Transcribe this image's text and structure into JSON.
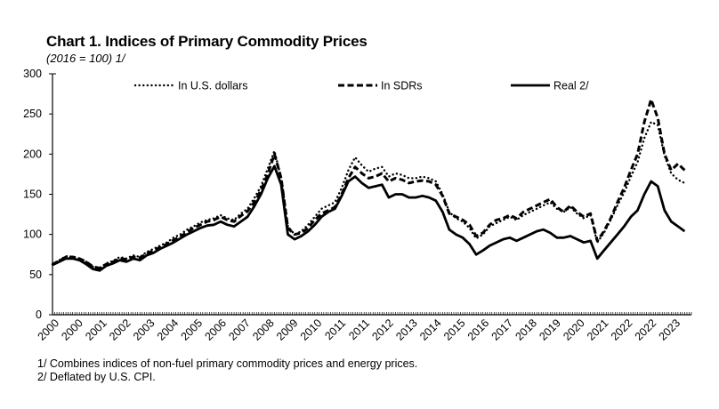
{
  "chart_data": {
    "type": "line",
    "title": "Chart 1. Indices of Primary Commodity Prices",
    "subtitle": "(2016 = 100) 1/",
    "xlabel": "",
    "ylabel": "",
    "ylim": [
      0,
      300
    ],
    "yticks": [
      0,
      50,
      100,
      150,
      200,
      250,
      300
    ],
    "xlim": [
      2000.0,
      2023.75
    ],
    "xtick_labels": [
      "2000",
      "2000",
      "2001",
      "2002",
      "2003",
      "2004",
      "2005",
      "2006",
      "2007",
      "2008",
      "2009",
      "2010",
      "2011",
      "2011",
      "2012",
      "2013",
      "2014",
      "2015",
      "2016",
      "2017",
      "2018",
      "2019",
      "2020",
      "2021",
      "2022",
      "2022",
      "2023"
    ],
    "grid": false,
    "legend_position": "top",
    "x": [
      2000.0,
      2000.25,
      2000.5,
      2000.75,
      2001.0,
      2001.25,
      2001.5,
      2001.75,
      2002.0,
      2002.25,
      2002.5,
      2002.75,
      2003.0,
      2003.25,
      2003.5,
      2003.75,
      2004.0,
      2004.25,
      2004.5,
      2004.75,
      2005.0,
      2005.25,
      2005.5,
      2005.75,
      2006.0,
      2006.25,
      2006.5,
      2006.75,
      2007.0,
      2007.25,
      2007.5,
      2007.75,
      2008.0,
      2008.25,
      2008.5,
      2008.75,
      2009.0,
      2009.25,
      2009.5,
      2009.75,
      2010.0,
      2010.25,
      2010.5,
      2010.75,
      2011.0,
      2011.25,
      2011.5,
      2011.75,
      2012.0,
      2012.25,
      2012.5,
      2012.75,
      2013.0,
      2013.25,
      2013.5,
      2013.75,
      2014.0,
      2014.25,
      2014.5,
      2014.75,
      2015.0,
      2015.25,
      2015.5,
      2015.75,
      2016.0,
      2016.25,
      2016.5,
      2016.75,
      2017.0,
      2017.25,
      2017.5,
      2017.75,
      2018.0,
      2018.25,
      2018.5,
      2018.75,
      2019.0,
      2019.25,
      2019.5,
      2019.75,
      2020.0,
      2020.25,
      2020.5,
      2020.75,
      2021.0,
      2021.25,
      2021.5,
      2021.75,
      2022.0,
      2022.25,
      2022.5,
      2022.75,
      2023.0,
      2023.25,
      2023.5
    ],
    "series": [
      {
        "name": "In U.S. dollars",
        "style": "dotted",
        "values": [
          63,
          68,
          73,
          72,
          70,
          66,
          60,
          58,
          64,
          67,
          72,
          70,
          74,
          72,
          78,
          82,
          86,
          90,
          96,
          100,
          106,
          110,
          115,
          118,
          120,
          124,
          120,
          118,
          126,
          132,
          145,
          160,
          182,
          204,
          170,
          110,
          100,
          104,
          112,
          122,
          132,
          136,
          140,
          158,
          180,
          196,
          186,
          178,
          182,
          184,
          172,
          176,
          174,
          170,
          170,
          172,
          170,
          166,
          150,
          128,
          120,
          116,
          108,
          95,
          100,
          110,
          114,
          118,
          122,
          118,
          124,
          128,
          132,
          136,
          140,
          132,
          128,
          134,
          126,
          120,
          124,
          90,
          102,
          118,
          136,
          152,
          172,
          190,
          220,
          240,
          236,
          198,
          176,
          168,
          164
        ]
      },
      {
        "name": "In SDRs",
        "style": "dashed",
        "values": [
          63,
          67,
          72,
          72,
          70,
          66,
          60,
          58,
          63,
          66,
          70,
          69,
          72,
          71,
          76,
          80,
          84,
          88,
          93,
          97,
          103,
          108,
          112,
          116,
          118,
          122,
          118,
          116,
          123,
          129,
          140,
          155,
          175,
          200,
          170,
          108,
          100,
          102,
          108,
          118,
          126,
          130,
          134,
          150,
          170,
          184,
          176,
          170,
          172,
          176,
          166,
          170,
          168,
          164,
          166,
          167,
          166,
          162,
          148,
          126,
          122,
          118,
          112,
          98,
          102,
          112,
          118,
          120,
          124,
          120,
          128,
          132,
          136,
          140,
          144,
          134,
          128,
          136,
          128,
          122,
          126,
          92,
          104,
          120,
          140,
          158,
          180,
          200,
          240,
          268,
          245,
          200,
          180,
          188,
          180
        ]
      },
      {
        "name": "Real 2/",
        "style": "solid",
        "values": [
          62,
          66,
          70,
          70,
          68,
          63,
          57,
          55,
          61,
          64,
          68,
          66,
          70,
          68,
          74,
          77,
          82,
          86,
          90,
          95,
          100,
          104,
          108,
          111,
          112,
          116,
          112,
          110,
          116,
          122,
          135,
          150,
          170,
          185,
          162,
          100,
          94,
          98,
          104,
          112,
          122,
          128,
          132,
          148,
          166,
          172,
          164,
          158,
          160,
          162,
          146,
          150,
          150,
          146,
          146,
          148,
          146,
          142,
          128,
          106,
          100,
          96,
          88,
          75,
          80,
          86,
          90,
          94,
          96,
          92,
          96,
          100,
          104,
          106,
          102,
          96,
          96,
          98,
          94,
          90,
          92,
          70,
          80,
          90,
          100,
          110,
          122,
          130,
          150,
          166,
          160,
          130,
          116,
          110,
          104
        ]
      }
    ]
  },
  "footnotes": [
    "1/ Combines indices of non-fuel primary commodity prices and energy prices.",
    "2/ Deflated by U.S. CPI."
  ]
}
